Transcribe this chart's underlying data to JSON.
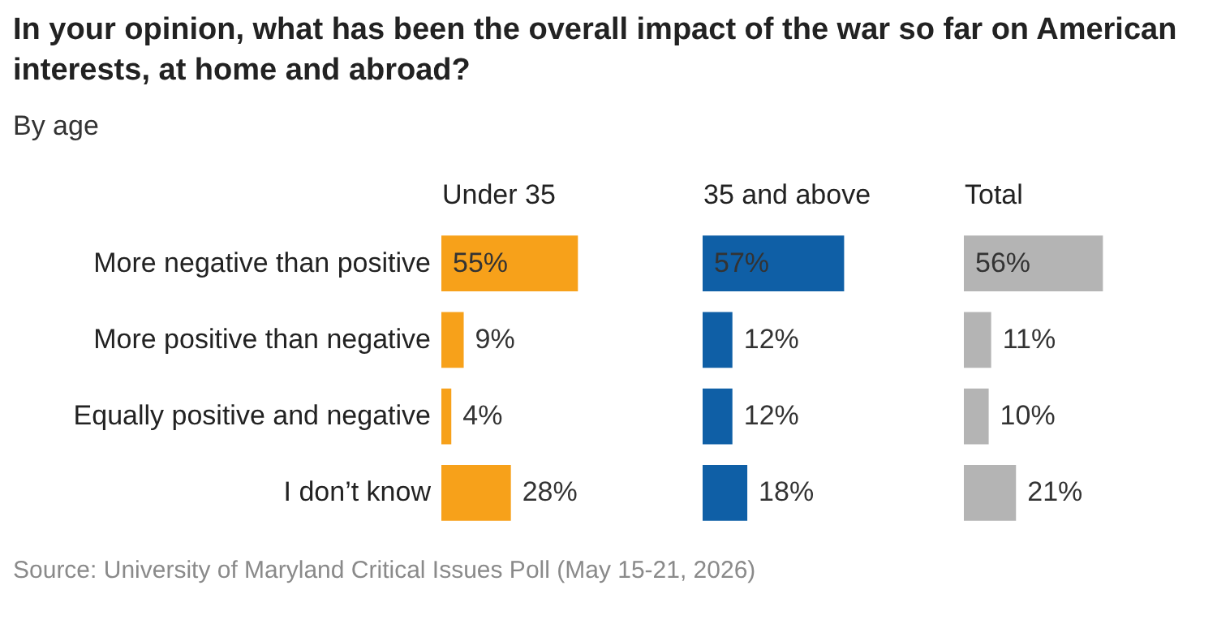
{
  "chart_data": [
    {
      "type": "bar",
      "orientation": "horizontal",
      "title": "In your opinion, what has been the overall impact of the war so far on American interests, at home and abroad?",
      "subtitle": "By age",
      "xlabel": "Under 35",
      "annotations": [
        "Source: University of Maryland Critical Issues Poll (May 15-21, 2026)"
      ],
      "categories": [
        "More negative than positive",
        "More positive than negative",
        "Equally positive and negative",
        "I don’t know"
      ],
      "values": [
        55,
        9,
        4,
        28
      ],
      "value_labels": [
        "55%",
        "9%",
        "4%",
        "28%"
      ],
      "color": "#f7a11a",
      "xlim": [
        0,
        100
      ],
      "tick_labels": "y"
    },
    {
      "type": "bar",
      "orientation": "horizontal",
      "xlabel": "35 and above",
      "categories": [
        null,
        null,
        null,
        null
      ],
      "values": [
        57,
        12,
        12,
        18
      ],
      "value_labels": [
        "57%",
        "12%",
        "12%",
        "18%"
      ],
      "color": "#0f5fa6",
      "xlim": [
        0,
        100
      ],
      "tick_labels": false
    },
    {
      "type": "bar",
      "orientation": "horizontal",
      "xlabel": "Total",
      "categories": [
        null,
        null,
        null,
        null
      ],
      "values": [
        56,
        11,
        10,
        21
      ],
      "value_labels": [
        "56%",
        "11%",
        "10%",
        "21%"
      ],
      "color": "#b4b4b4",
      "xlim": [
        0,
        100
      ],
      "tick_labels": false
    }
  ]
}
